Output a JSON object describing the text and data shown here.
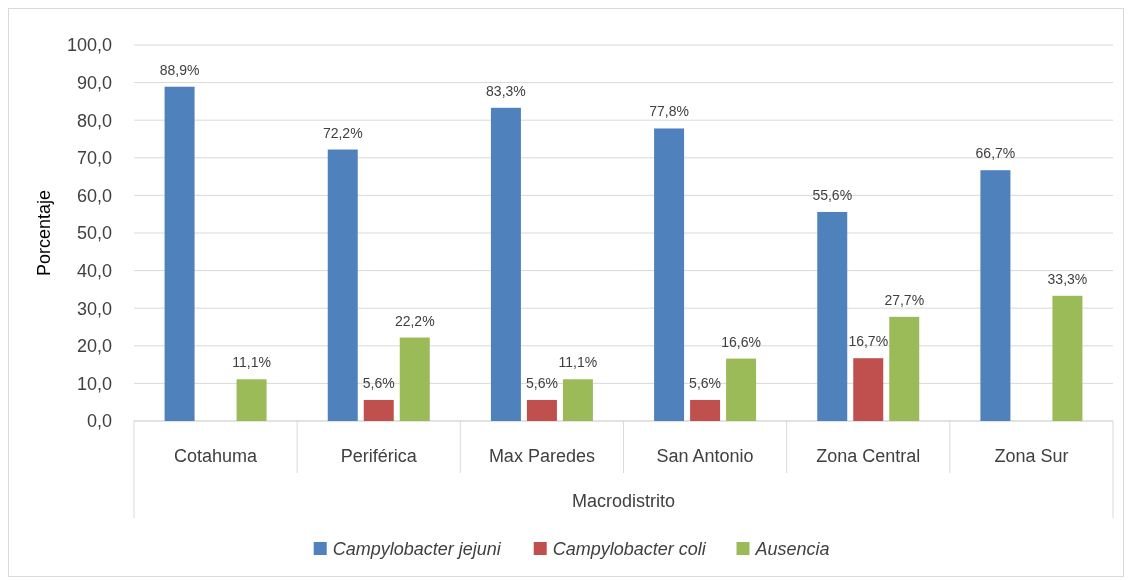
{
  "chart_data": {
    "type": "bar",
    "xlabel": "Macrodistrito",
    "ylabel": "Porcentaje",
    "categories": [
      "Cotahuma",
      "Periférica",
      "Max Paredes",
      "San Antonio",
      "Zona Central",
      "Zona Sur"
    ],
    "series": [
      {
        "name": "Campylobacter jejuni",
        "color": "#4f81bd",
        "values": [
          88.9,
          72.2,
          83.3,
          77.8,
          55.6,
          66.7
        ],
        "value_labels": [
          "88,9%",
          "72,2%",
          "83,3%",
          "77,8%",
          "55,6%",
          "66,7%"
        ]
      },
      {
        "name": "Campylobacter coli",
        "color": "#c0504d",
        "values": [
          null,
          5.6,
          5.6,
          5.6,
          16.7,
          null
        ],
        "value_labels": [
          null,
          "5,6%",
          "5,6%",
          "5,6%",
          "16,7%",
          null
        ]
      },
      {
        "name": "Ausencia",
        "color": "#9bbb59",
        "values": [
          11.1,
          22.2,
          11.1,
          16.6,
          27.7,
          33.3
        ],
        "value_labels": [
          "11,1%",
          "22,2%",
          "11,1%",
          "16,6%",
          "27,7%",
          "33,3%"
        ]
      }
    ],
    "ylim": [
      0,
      100
    ],
    "yticks": [
      {
        "value": 0,
        "label": "0,0"
      },
      {
        "value": 10,
        "label": "10,0"
      },
      {
        "value": 20,
        "label": "20,0"
      },
      {
        "value": 30,
        "label": "30,0"
      },
      {
        "value": 40,
        "label": "40,0"
      },
      {
        "value": 50,
        "label": "50,0"
      },
      {
        "value": 60,
        "label": "60,0"
      },
      {
        "value": 70,
        "label": "70,0"
      },
      {
        "value": 80,
        "label": "80,0"
      },
      {
        "value": 90,
        "label": "90,0"
      },
      {
        "value": 100,
        "label": "100,0"
      }
    ],
    "grid": "y",
    "legend": "bottom"
  }
}
